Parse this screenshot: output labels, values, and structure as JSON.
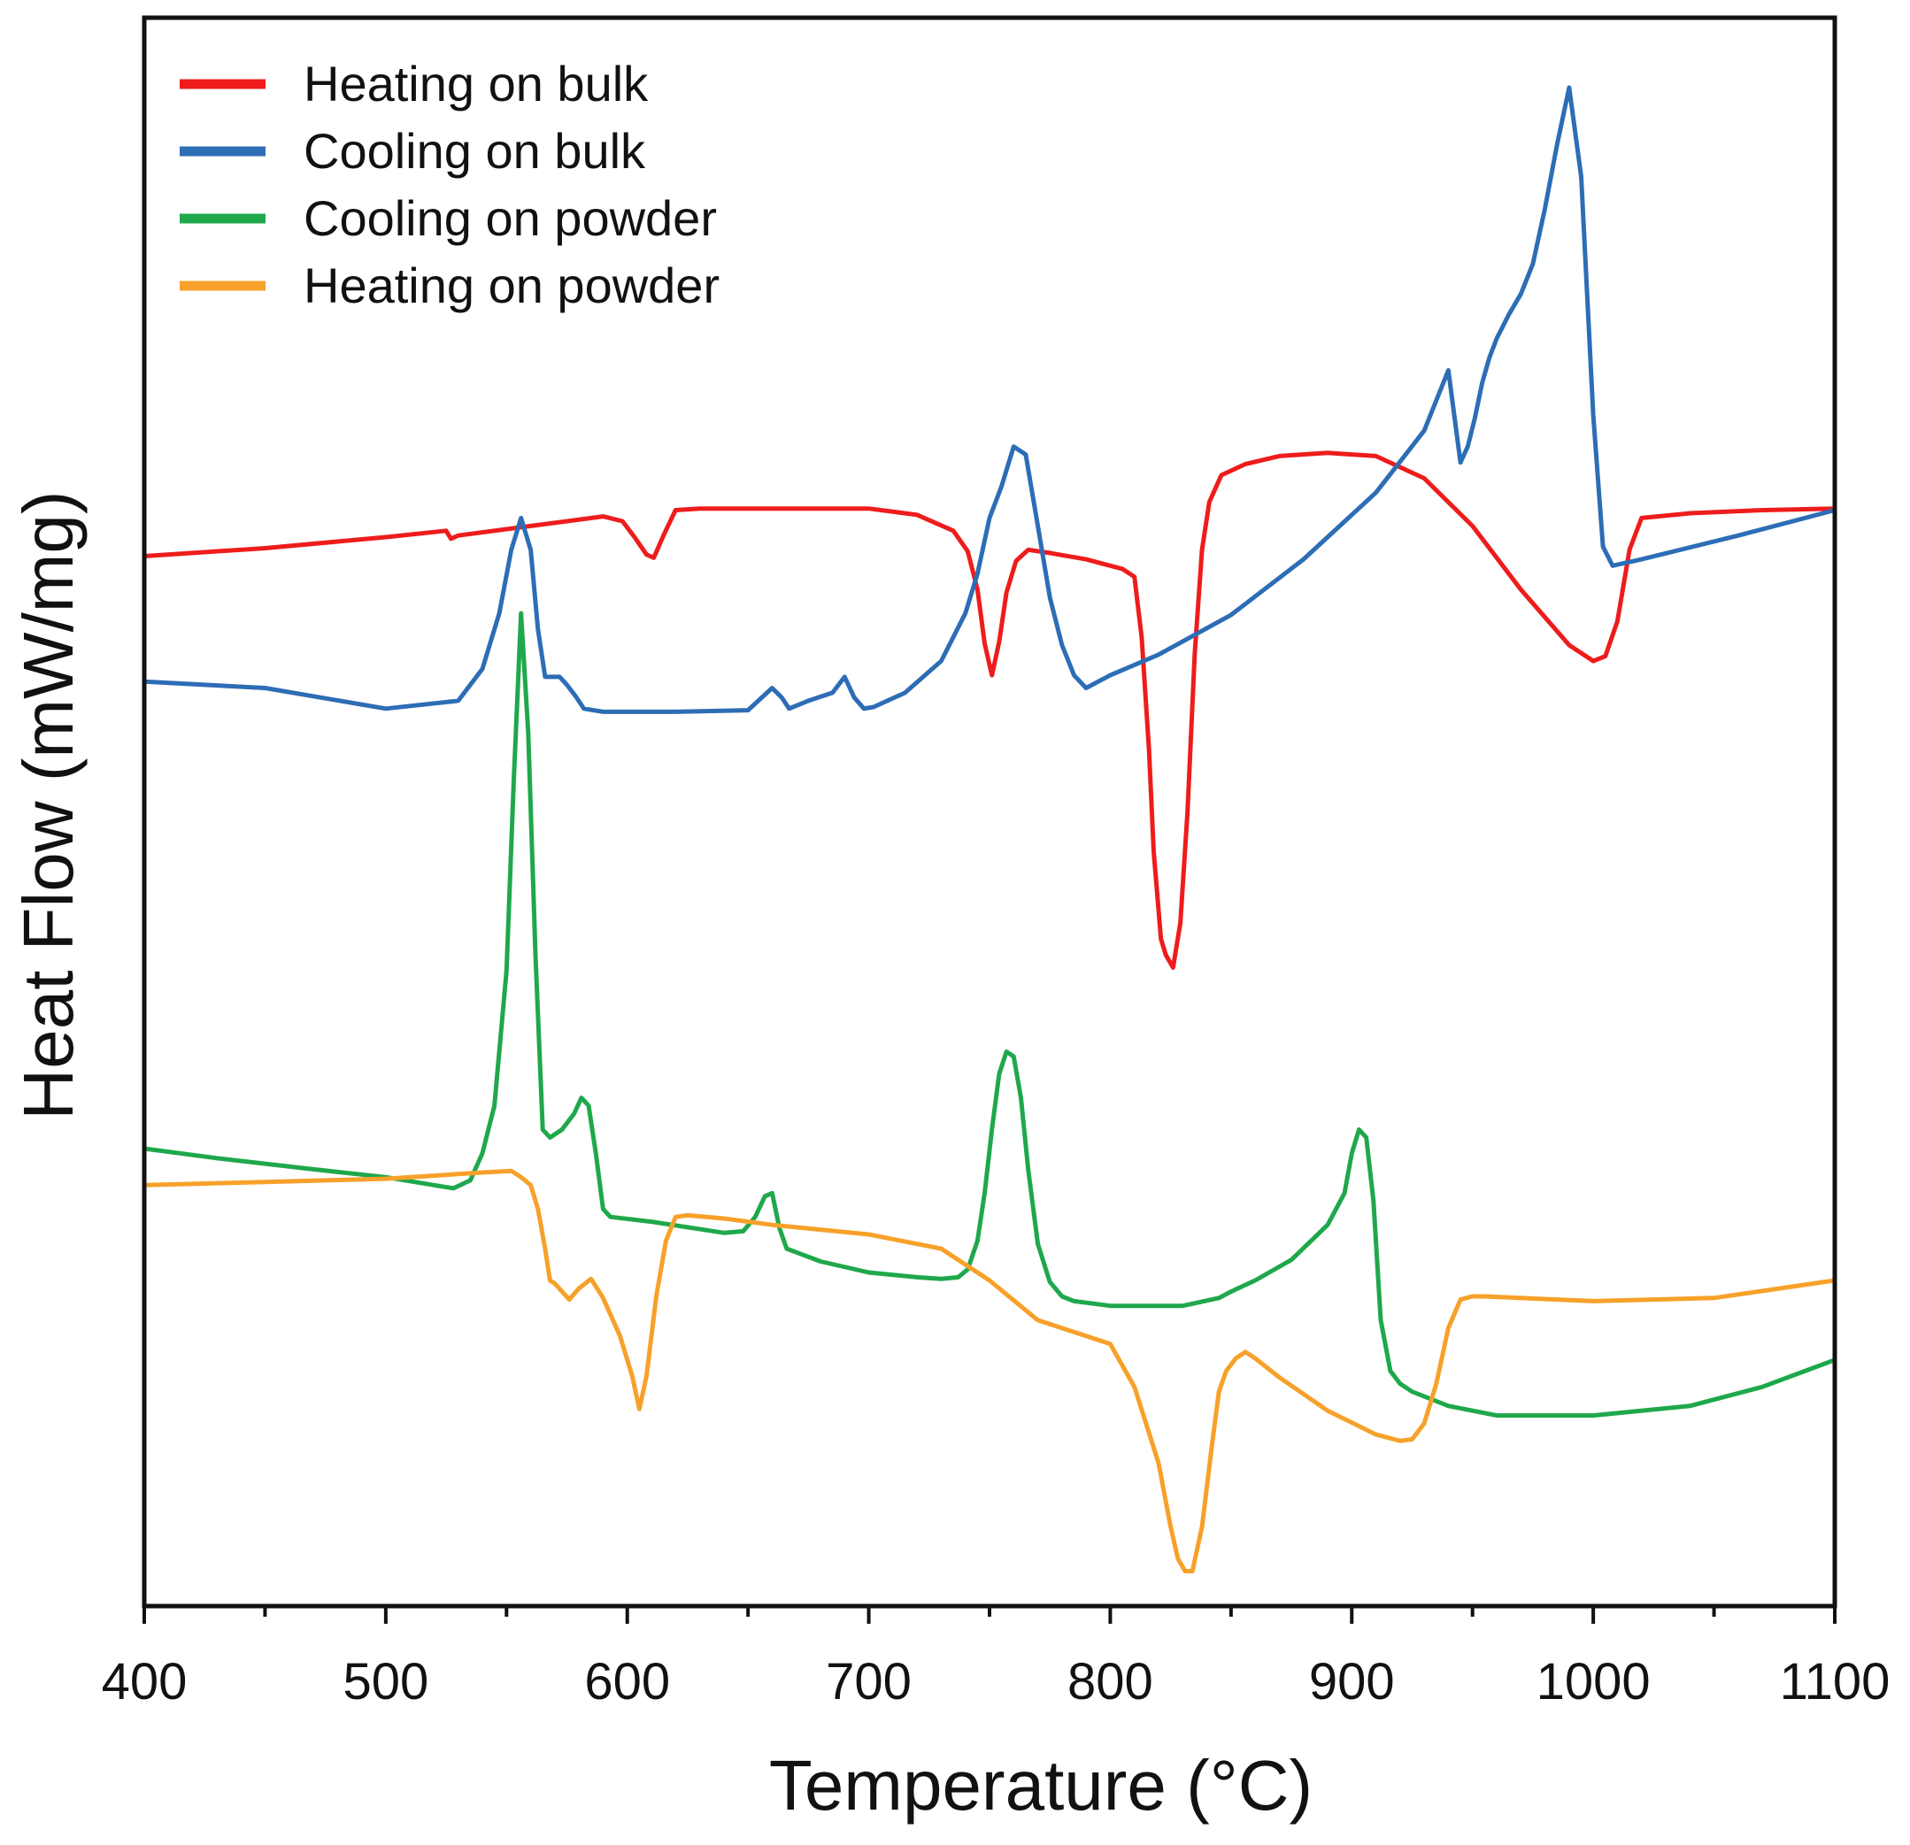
{
  "chart_data": {
    "type": "line",
    "title": "",
    "xlabel": "Temperature (°C)",
    "ylabel": "Heat Flow (mW/mg)",
    "xlim": [
      400,
      1100
    ],
    "ylim": [
      0,
      100
    ],
    "y_tick_labels_shown": false,
    "grid": false,
    "legend_position": "top-left",
    "x_ticks": [
      400,
      500,
      600,
      700,
      800,
      900,
      1000,
      1100
    ],
    "x_tick_labels": [
      "400",
      "500",
      "600",
      "700",
      "800",
      "900",
      "1000",
      "1100"
    ],
    "series": [
      {
        "name": "Heating on bulk",
        "color": "#ee1c1c",
        "x": [
          400,
          450,
          500,
          525,
          527,
          530,
          560,
          590,
          598,
          603,
          608,
          611,
          615,
          620,
          630,
          660,
          700,
          720,
          735,
          741,
          745,
          748,
          751,
          754,
          757,
          761,
          766,
          775,
          790,
          805,
          810,
          813,
          816,
          818,
          821,
          823,
          826,
          829,
          832,
          835,
          838,
          841,
          846,
          856,
          870,
          890,
          910,
          930,
          950,
          970,
          990,
          1000,
          1005,
          1010,
          1015,
          1020,
          1040,
          1070,
          1100
        ],
        "y": [
          66.1,
          66.6,
          67.3,
          67.7,
          67.2,
          67.4,
          68.0,
          68.6,
          68.3,
          67.3,
          66.2,
          66.0,
          67.4,
          69.0,
          69.1,
          69.1,
          69.1,
          68.7,
          67.7,
          66.4,
          64.0,
          60.6,
          58.6,
          60.7,
          63.8,
          65.8,
          66.5,
          66.3,
          65.9,
          65.3,
          64.8,
          61.0,
          54.0,
          47.5,
          42.0,
          41.0,
          40.2,
          43.0,
          50.0,
          60.0,
          66.5,
          69.5,
          71.2,
          71.9,
          72.4,
          72.6,
          72.4,
          71.0,
          68.0,
          64.0,
          60.5,
          59.5,
          59.8,
          62.0,
          66.5,
          68.5,
          68.8,
          69.0,
          69.1
        ]
      },
      {
        "name": "Cooling on bulk",
        "color": "#2d6db5",
        "x": [
          400,
          450,
          500,
          530,
          540,
          547,
          552,
          556,
          560,
          563,
          566,
          572,
          575,
          579,
          582,
          590,
          620,
          650,
          660,
          664,
          667,
          675,
          685,
          690,
          694,
          698,
          702,
          715,
          730,
          740,
          745,
          750,
          755,
          760,
          765,
          770,
          775,
          780,
          785,
          790,
          800,
          820,
          850,
          880,
          910,
          930,
          940,
          945,
          948,
          951,
          954,
          957,
          960,
          965,
          970,
          975,
          980,
          985,
          990,
          995,
          1000,
          1004,
          1008,
          1020,
          1060,
          1100
        ],
        "y": [
          58.2,
          57.8,
          56.5,
          57.0,
          59.0,
          62.5,
          66.5,
          68.5,
          66.5,
          61.5,
          58.5,
          58.5,
          58.0,
          57.2,
          56.5,
          56.3,
          56.3,
          56.4,
          57.8,
          57.2,
          56.5,
          57.0,
          57.5,
          58.5,
          57.2,
          56.5,
          56.6,
          57.5,
          59.5,
          62.5,
          65.0,
          68.5,
          70.5,
          73.0,
          72.5,
          68.0,
          63.5,
          60.5,
          58.6,
          57.8,
          58.6,
          59.9,
          62.4,
          65.9,
          70.1,
          74.0,
          77.8,
          72.0,
          73.0,
          74.8,
          77.0,
          78.6,
          79.8,
          81.3,
          82.6,
          84.5,
          88.0,
          92.0,
          95.6,
          90.0,
          75.0,
          66.7,
          65.5,
          65.9,
          67.4,
          69.0
        ]
      },
      {
        "name": "Cooling on powder",
        "color": "#1fa84b",
        "x": [
          400,
          430,
          470,
          500,
          520,
          528,
          535,
          540,
          545,
          550,
          553,
          556,
          559,
          562,
          565,
          568,
          573,
          578,
          581,
          584,
          587,
          590,
          593,
          610,
          640,
          648,
          653,
          657,
          660,
          663,
          666,
          680,
          700,
          720,
          730,
          737,
          741,
          745,
          748,
          751,
          754,
          757,
          760,
          763,
          766,
          770,
          775,
          780,
          785,
          800,
          830,
          845,
          850,
          860,
          875,
          890,
          897,
          900,
          903,
          906,
          909,
          912,
          916,
          920,
          925,
          940,
          960,
          1000,
          1040,
          1070,
          1100
        ],
        "y": [
          28.8,
          28.2,
          27.5,
          27.0,
          26.5,
          26.3,
          26.8,
          28.5,
          31.5,
          40.0,
          52.0,
          62.5,
          55.0,
          41.0,
          30.0,
          29.5,
          30.0,
          31.0,
          32.0,
          31.5,
          28.5,
          25.0,
          24.5,
          24.2,
          23.5,
          23.6,
          24.5,
          25.8,
          26.0,
          23.8,
          22.5,
          21.7,
          21.0,
          20.7,
          20.6,
          20.7,
          21.2,
          23.0,
          26.0,
          30.0,
          33.5,
          34.9,
          34.6,
          32.0,
          27.5,
          22.8,
          20.4,
          19.5,
          19.2,
          18.9,
          18.9,
          19.4,
          19.8,
          20.5,
          21.8,
          24.0,
          26.0,
          28.5,
          30.0,
          29.5,
          25.5,
          18.0,
          14.8,
          14.0,
          13.5,
          12.6,
          12.0,
          12.0,
          12.6,
          13.8,
          15.5
        ]
      },
      {
        "name": "Heating on powder",
        "color": "#f7a12a",
        "x": [
          400,
          450,
          500,
          540,
          552,
          556,
          560,
          563,
          566,
          568,
          570,
          573,
          576,
          580,
          585,
          590,
          597,
          602,
          605,
          608,
          612,
          616,
          620,
          625,
          640,
          660,
          700,
          730,
          750,
          770,
          800,
          810,
          820,
          825,
          828,
          831,
          834,
          838,
          842,
          845,
          848,
          852,
          856,
          860,
          870,
          890,
          910,
          920,
          925,
          930,
          935,
          940,
          945,
          950,
          955,
          1000,
          1050,
          1100
        ],
        "y": [
          26.5,
          26.7,
          26.9,
          27.3,
          27.4,
          27.0,
          26.5,
          25.0,
          22.5,
          20.5,
          20.3,
          19.8,
          19.3,
          20.0,
          20.6,
          19.4,
          17.0,
          14.5,
          12.4,
          14.5,
          19.5,
          23.0,
          24.5,
          24.6,
          24.4,
          24.0,
          23.4,
          22.5,
          20.5,
          18.0,
          16.5,
          13.8,
          9.0,
          5.0,
          3.0,
          2.2,
          2.2,
          5.0,
          10.0,
          13.5,
          14.8,
          15.6,
          16.0,
          15.6,
          14.4,
          12.3,
          10.8,
          10.4,
          10.5,
          11.5,
          14.0,
          17.5,
          19.3,
          19.5,
          19.5,
          19.2,
          19.4,
          20.5
        ]
      }
    ]
  }
}
